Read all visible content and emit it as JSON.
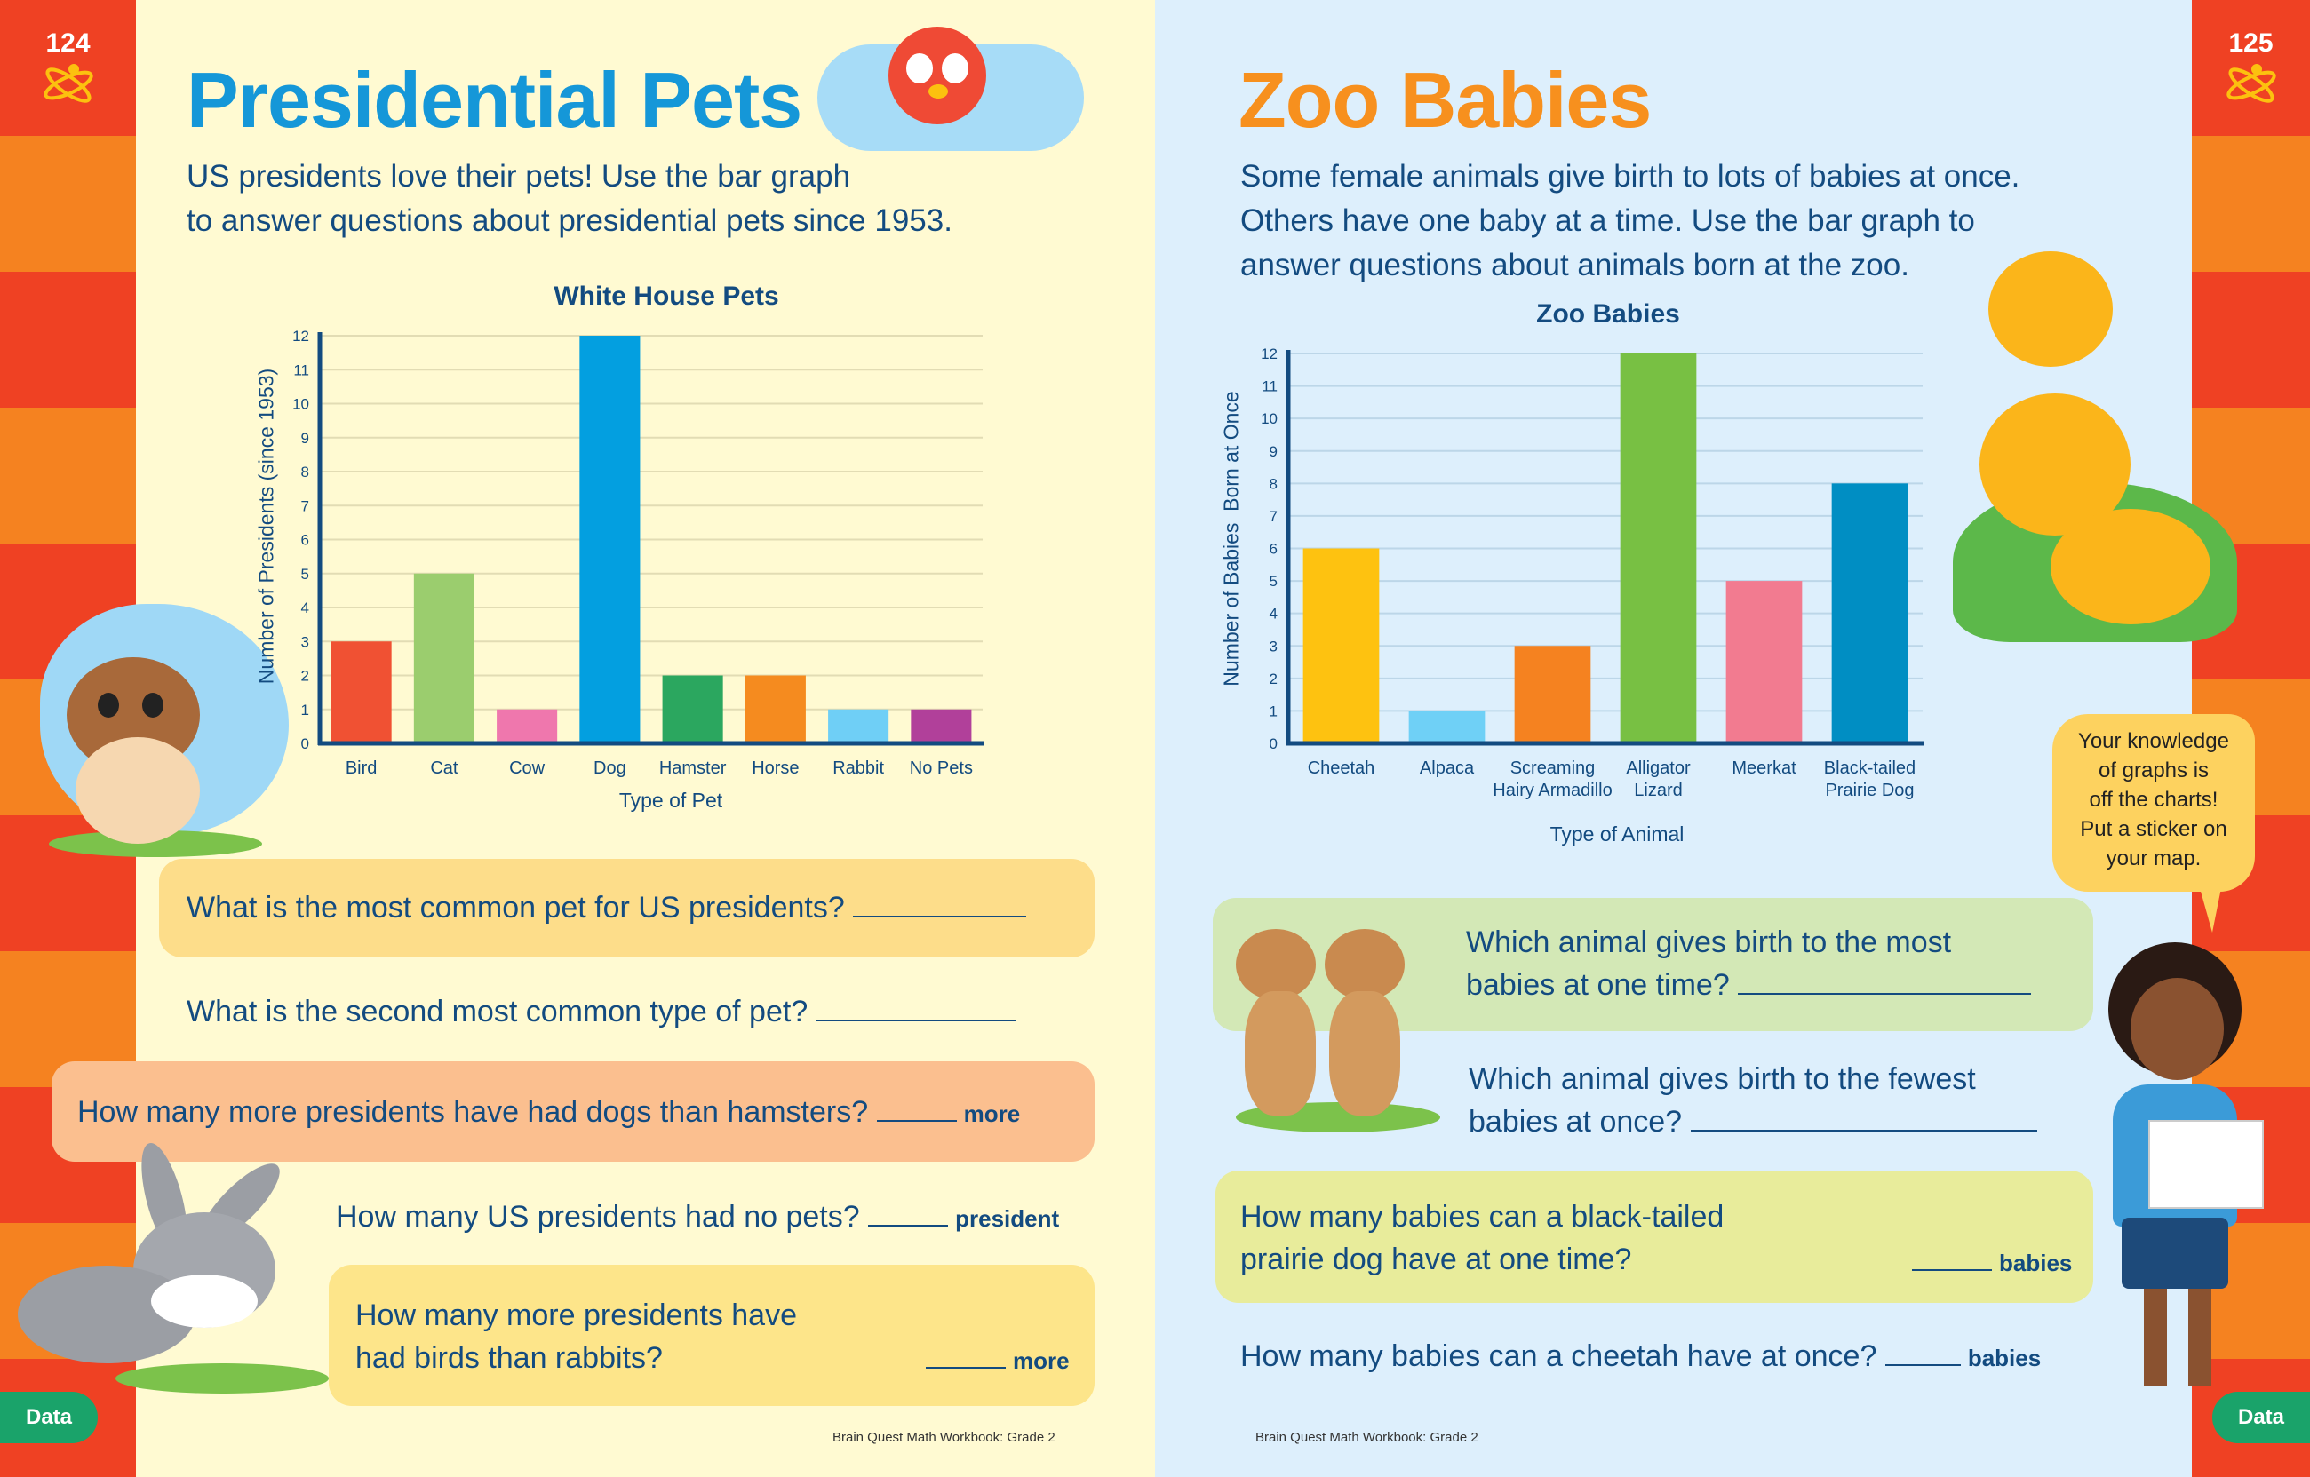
{
  "colors": {
    "red_stripe": "#ef4123",
    "orange_stripe": "#f58220",
    "left_page_bg": "#fffad2",
    "right_page_bg": "#ddeffc",
    "text_navy": "#134b80",
    "title_blue": "#1597d8",
    "title_orange": "#f7901e",
    "data_tab_green": "#1aa36a"
  },
  "left_page": {
    "page_number": "124",
    "title": "Presidential Pets",
    "intro": [
      "US presidents love their pets! Use the bar graph",
      "to answer questions about presidential pets since 1953."
    ],
    "questions": [
      {
        "text": "What is the most common pet for US presidents?",
        "unit": ""
      },
      {
        "text": "What is the second most common type of pet?",
        "unit": ""
      },
      {
        "text": "How many more presidents have had dogs than hamsters?",
        "unit": "more"
      },
      {
        "text": "How many US presidents had no pets?",
        "unit": "president"
      },
      {
        "text": [
          "How many more presidents have",
          "had birds than rabbits?"
        ],
        "unit": "more"
      }
    ],
    "footer": "Brain Quest Math Workbook: Grade 2",
    "tab_label": "Data"
  },
  "right_page": {
    "page_number": "125",
    "title": "Zoo Babies",
    "intro": [
      "Some female animals give birth to lots of babies at once.",
      "Others have one baby at a time. Use the bar graph to",
      "answer questions about animals born at the zoo."
    ],
    "questions": [
      {
        "text": [
          "Which animal gives birth to the most",
          "babies at one time?"
        ],
        "unit": ""
      },
      {
        "text": [
          "Which animal gives birth to the fewest",
          "babies at once?"
        ],
        "unit": ""
      },
      {
        "text": [
          "How many babies can a black-tailed",
          "prairie dog have at one time?"
        ],
        "unit": "babies"
      },
      {
        "text": "How many babies can a cheetah have at once?",
        "unit": "babies"
      }
    ],
    "speech_bubble": [
      "Your knowledge",
      "of graphs is",
      "off the charts!",
      "Put a sticker on",
      "your map."
    ],
    "footer": "Brain Quest Math Workbook: Grade 2",
    "tab_label": "Data"
  },
  "chart_data": [
    {
      "type": "bar",
      "title": "White House Pets",
      "xlabel": "Type of Pet",
      "ylabel": "Number of Presidents (since 1953)",
      "categories": [
        "Bird",
        "Cat",
        "Cow",
        "Dog",
        "Hamster",
        "Horse",
        "Rabbit",
        "No Pets"
      ],
      "values": [
        3,
        5,
        1,
        12,
        2,
        2,
        1,
        1
      ],
      "bar_colors": [
        "#f05133",
        "#9bcd6e",
        "#ef77ad",
        "#039fe0",
        "#2ba75f",
        "#f58b1f",
        "#6fcff6",
        "#b1409a"
      ],
      "ylim": [
        0,
        12
      ],
      "yticks": [
        "0",
        "1",
        "2",
        "3",
        "4",
        "5",
        "6",
        "7",
        "8",
        "9",
        "10",
        "11",
        "12"
      ],
      "grid": true
    },
    {
      "type": "bar",
      "title": "Zoo Babies",
      "xlabel": "Type of Animal",
      "ylabel": "Number of Babies  Born at Once",
      "categories": [
        [
          "Cheetah"
        ],
        [
          "Alpaca"
        ],
        [
          "Screaming",
          "Hairy Armadillo"
        ],
        [
          "Alligator",
          "Lizard"
        ],
        [
          "Meerkat"
        ],
        [
          "Black-tailed",
          "Prairie Dog"
        ]
      ],
      "values": [
        6,
        1,
        3,
        12,
        5,
        8
      ],
      "bar_colors": [
        "#fec210",
        "#6fd0f6",
        "#f58220",
        "#78c043",
        "#f27b90",
        "#008ec3"
      ],
      "ylim": [
        0,
        12
      ],
      "yticks": [
        "0",
        "1",
        "2",
        "3",
        "4",
        "5",
        "6",
        "7",
        "8",
        "9",
        "10",
        "11",
        "12"
      ],
      "grid": true
    }
  ]
}
